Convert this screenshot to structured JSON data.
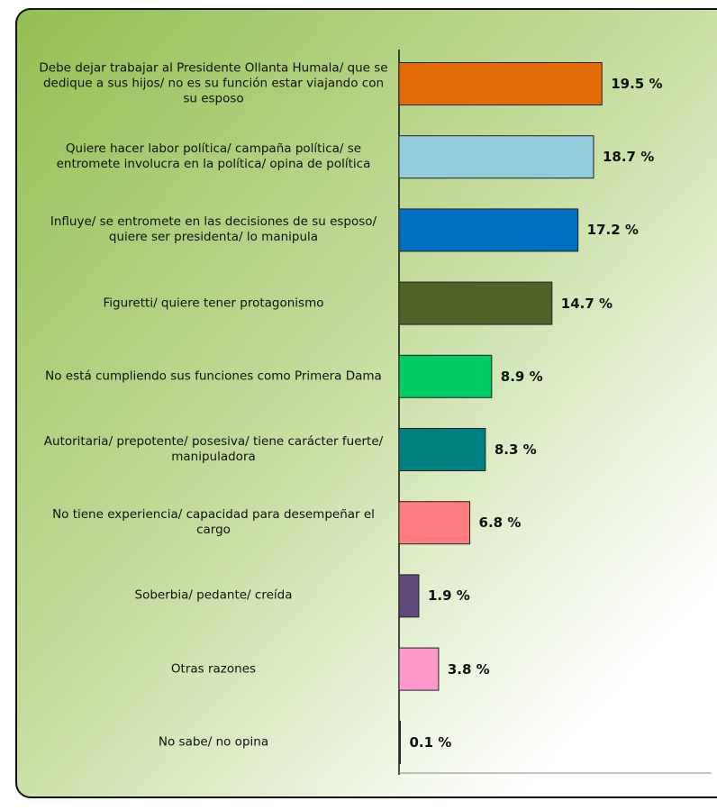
{
  "chart_data": {
    "type": "bar",
    "orientation": "horizontal",
    "categories": [
      "Debe dejar trabajar al Presidente Ollanta Humala/ que se dedique a sus hijos/ no es su función estar viajando con su esposo",
      "Quiere hacer labor política/ campaña política/ se entromete involucra en la política/ opina de política",
      "Influye/ se entromete en las decisiones de su esposo/ quiere ser presidenta/ lo manipula",
      "Figuretti/ quiere tener protagonismo",
      "No está cumpliendo sus funciones como Primera Dama",
      "Autoritaria/ prepotente/ posesiva/ tiene carácter fuerte/ manipuladora",
      "No tiene experiencia/ capacidad para desempeñar el cargo",
      "Soberbia/ pedante/ creída",
      "Otras razones",
      "No sabe/ no opina"
    ],
    "values": [
      19.5,
      18.7,
      17.2,
      14.7,
      8.9,
      8.3,
      6.8,
      1.9,
      3.8,
      0.1
    ],
    "value_labels": [
      "19.5 %",
      "18.7 %",
      "17.2 %",
      "14.7 %",
      "8.9 %",
      "8.3 %",
      "6.8 %",
      "1.9 %",
      "3.8 %",
      "0.1 %"
    ],
    "colors": [
      "#e36c0a",
      "#92cddc",
      "#0070c0",
      "#4f6228",
      "#00cc66",
      "#008080",
      "#ff7c80",
      "#604a7b",
      "#ff99cc",
      "#333333"
    ]
  }
}
